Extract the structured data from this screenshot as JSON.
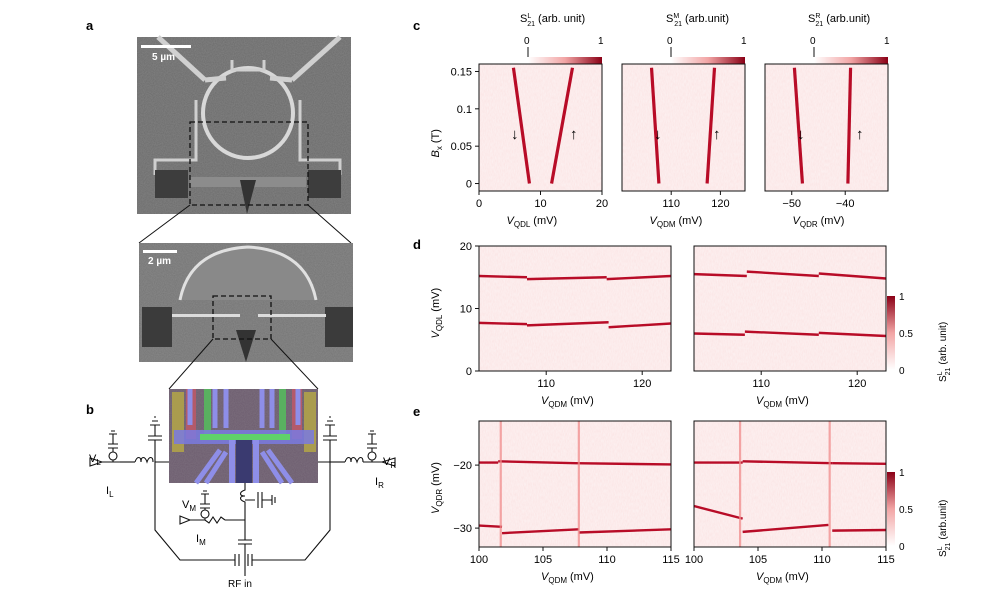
{
  "panels": {
    "a": "a",
    "b": "b",
    "c": "c",
    "d": "d",
    "e": "e"
  },
  "sem": {
    "scale_top": "5 µm",
    "scale_mid": "2 µm"
  },
  "circuit": {
    "VL": "V",
    "VL_sub": "L",
    "IL": "I",
    "IL_sub": "L",
    "VR": "V",
    "VR_sub": "R",
    "IR": "I",
    "IR_sub": "R",
    "VM": "V",
    "VM_sub": "M",
    "IM": "I",
    "IM_sub": "M",
    "rf": "RF in"
  },
  "colorbars": {
    "c_left": {
      "label": "(arb. unit)",
      "sym": "S",
      "sup": "L",
      "sub": "21",
      "min": "0",
      "max": "1"
    },
    "c_mid": {
      "label": "(arb.unit)",
      "sym": "S",
      "sup": "M",
      "sub": "21",
      "min": "0",
      "max": "1"
    },
    "c_right": {
      "label": "(arb.unit)",
      "sym": "S",
      "sup": "R",
      "sub": "21",
      "min": "0",
      "max": "1"
    },
    "d": {
      "label": "(arb. unit)",
      "sym": "S",
      "sup": "L",
      "sub": "21",
      "ticks": [
        "1",
        "0.5",
        "0"
      ]
    },
    "e": {
      "label": "(arb.unit)",
      "sym": "S",
      "sup": "L",
      "sub": "21",
      "ticks": [
        "1",
        "0.5",
        "0"
      ]
    }
  },
  "chart_data": [
    {
      "type": "line",
      "panel": "c-left",
      "ylabel": "B",
      "ylabel_sub": "x",
      "ylabel_unit": "(T)",
      "xlabel": "V",
      "xlabel_sub": "QDL",
      "xlabel_unit": "(mV)",
      "xlim": [
        0,
        20
      ],
      "ylim": [
        -0.01,
        0.16
      ],
      "xticks": [
        "0",
        "10",
        "20"
      ],
      "yticks": [
        "0.15",
        "0.1",
        "0.05",
        "0"
      ],
      "arrows": [
        "↓",
        "↑"
      ],
      "series": [
        {
          "x": [
            8.2,
            5.6
          ],
          "y": [
            0,
            0.155
          ]
        },
        {
          "x": [
            11.8,
            15.2
          ],
          "y": [
            0,
            0.155
          ]
        }
      ]
    },
    {
      "type": "line",
      "panel": "c-mid",
      "xlabel": "V",
      "xlabel_sub": "QDM",
      "xlabel_unit": "(mV)",
      "xlim": [
        100,
        125
      ],
      "ylim": [
        -0.01,
        0.16
      ],
      "xticks": [
        "110",
        "120"
      ],
      "arrows": [
        "↓",
        "↑"
      ],
      "series": [
        {
          "x": [
            107.5,
            106.0
          ],
          "y": [
            0,
            0.155
          ]
        },
        {
          "x": [
            117.3,
            118.8
          ],
          "y": [
            0,
            0.155
          ]
        }
      ]
    },
    {
      "type": "line",
      "panel": "c-right",
      "xlabel": "V",
      "xlabel_sub": "QDR",
      "xlabel_unit": "(mV)",
      "xlim": [
        -55,
        -32
      ],
      "ylim": [
        -0.01,
        0.16
      ],
      "xticks": [
        "−50",
        "−40"
      ],
      "arrows": [
        "↓",
        "↑"
      ],
      "series": [
        {
          "x": [
            -48,
            -49.5
          ],
          "y": [
            0,
            0.155
          ]
        },
        {
          "x": [
            -39.5,
            -39
          ],
          "y": [
            0,
            0.155
          ]
        }
      ]
    },
    {
      "type": "heatmap",
      "panel": "d-left",
      "ylabel": "V",
      "ylabel_sub": "QDL",
      "ylabel_unit": "(mV)",
      "xlabel": "V",
      "xlabel_sub": "QDM",
      "xlabel_unit": "(mV)",
      "xlim": [
        103,
        123
      ],
      "ylim": [
        0,
        20
      ],
      "xticks": [
        "110",
        "120"
      ],
      "yticks": [
        "20",
        "10",
        "0"
      ],
      "series": [
        {
          "x": [
            103,
            108
          ],
          "y": [
            15.2,
            15.0
          ]
        },
        {
          "x": [
            108,
            116.3
          ],
          "y": [
            14.7,
            15.0
          ]
        },
        {
          "x": [
            116.3,
            123
          ],
          "y": [
            14.7,
            15.2
          ]
        },
        {
          "x": [
            103,
            108
          ],
          "y": [
            7.7,
            7.5
          ]
        },
        {
          "x": [
            108,
            116.5
          ],
          "y": [
            7.3,
            7.8
          ]
        },
        {
          "x": [
            116.5,
            123
          ],
          "y": [
            7.0,
            7.6
          ]
        }
      ]
    },
    {
      "type": "heatmap",
      "panel": "d-right",
      "xlabel": "V",
      "xlabel_sub": "QDM",
      "xlabel_unit": "(mV)",
      "xlim": [
        103,
        123
      ],
      "ylim": [
        0,
        20
      ],
      "xticks": [
        "110",
        "120"
      ],
      "series": [
        {
          "x": [
            103,
            108.5
          ],
          "y": [
            15.5,
            15.2
          ]
        },
        {
          "x": [
            108.5,
            116
          ],
          "y": [
            15.9,
            15.2
          ]
        },
        {
          "x": [
            116,
            123
          ],
          "y": [
            15.6,
            14.8
          ]
        },
        {
          "x": [
            103,
            108.3
          ],
          "y": [
            6.0,
            5.8
          ]
        },
        {
          "x": [
            108.3,
            116
          ],
          "y": [
            6.3,
            5.8
          ]
        },
        {
          "x": [
            116,
            123
          ],
          "y": [
            6.1,
            5.6
          ]
        }
      ]
    },
    {
      "type": "heatmap",
      "panel": "e-left",
      "ylabel": "V",
      "ylabel_sub": "QDR",
      "ylabel_unit": "(mV)",
      "xlabel": "V",
      "xlabel_sub": "QDM",
      "xlabel_unit": "(mV)",
      "xlim": [
        100,
        115
      ],
      "ylim": [
        -33,
        -13
      ],
      "xticks": [
        "100",
        "105",
        "110",
        "115"
      ],
      "yticks": [
        "−20",
        "−30"
      ],
      "series": [
        {
          "x": [
            100,
            101.5
          ],
          "y": [
            -19.6,
            -19.6
          ]
        },
        {
          "x": [
            101.5,
            107.5
          ],
          "y": [
            -19.4,
            -19.7
          ]
        },
        {
          "x": [
            107.5,
            115
          ],
          "y": [
            -19.7,
            -19.9
          ]
        },
        {
          "x": [
            100,
            101.8
          ],
          "y": [
            -29.6,
            -29.8
          ]
        },
        {
          "x": [
            101.8,
            107.8
          ],
          "y": [
            -30.8,
            -30.2
          ]
        },
        {
          "x": [
            107.8,
            115
          ],
          "y": [
            -30.7,
            -30.2
          ]
        },
        {
          "x": [
            101.7,
            101.7
          ],
          "y": [
            -13,
            -33
          ]
        },
        {
          "x": [
            107.8,
            107.8
          ],
          "y": [
            -13,
            -33
          ]
        }
      ]
    },
    {
      "type": "heatmap",
      "panel": "e-right",
      "xlabel": "V",
      "xlabel_sub": "QDM",
      "xlabel_unit": "(mV)",
      "xlim": [
        100,
        115
      ],
      "ylim": [
        -33,
        -13
      ],
      "xticks": [
        "100",
        "105",
        "110",
        "115"
      ],
      "series": [
        {
          "x": [
            100,
            103.8
          ],
          "y": [
            -19.6,
            -19.6
          ]
        },
        {
          "x": [
            103.8,
            110.8
          ],
          "y": [
            -19.4,
            -19.7
          ]
        },
        {
          "x": [
            110.8,
            115
          ],
          "y": [
            -19.7,
            -19.8
          ]
        },
        {
          "x": [
            100,
            103.8
          ],
          "y": [
            -26.5,
            -28.5
          ]
        },
        {
          "x": [
            103.8,
            110.5
          ],
          "y": [
            -30.6,
            -29.5
          ]
        },
        {
          "x": [
            110.8,
            115
          ],
          "y": [
            -30.4,
            -30.3
          ]
        },
        {
          "x": [
            103.6,
            103.6
          ],
          "y": [
            -13,
            -33
          ]
        },
        {
          "x": [
            110.6,
            110.6
          ],
          "y": [
            -13,
            -33
          ]
        }
      ]
    }
  ]
}
